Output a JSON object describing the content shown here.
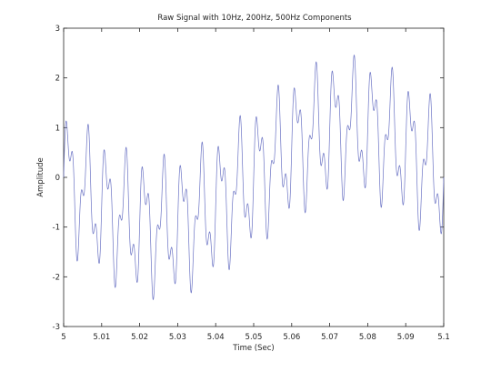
{
  "chart_data": {
    "type": "line",
    "title": "Raw Signal with 10Hz, 200Hz, 500Hz Components",
    "xlabel": "Time (Sec)",
    "ylabel": "Amplitude",
    "xlim": [
      5.0,
      5.1
    ],
    "ylim": [
      -3,
      3
    ],
    "grid": false,
    "legend": "none",
    "xticks": [
      "5",
      "5.01",
      "5.02",
      "5.03",
      "5.04",
      "5.05",
      "5.06",
      "5.07",
      "5.08",
      "5.09",
      "5.1"
    ],
    "yticks": [
      "-3",
      "-2",
      "-1",
      "0",
      "1",
      "2",
      "3"
    ],
    "line_color": "#6b73c4",
    "series": [
      {
        "name": "",
        "components": [
          {
            "freq_hz": 10,
            "amplitude": 1.0,
            "phase": 3.1416
          },
          {
            "freq_hz": 200,
            "amplitude": 1.0,
            "phase": 0.0
          },
          {
            "freq_hz": 500,
            "amplitude": 0.5,
            "phase": 0.0
          }
        ],
        "x_start": 5.0,
        "x_end": 5.1
      }
    ]
  }
}
